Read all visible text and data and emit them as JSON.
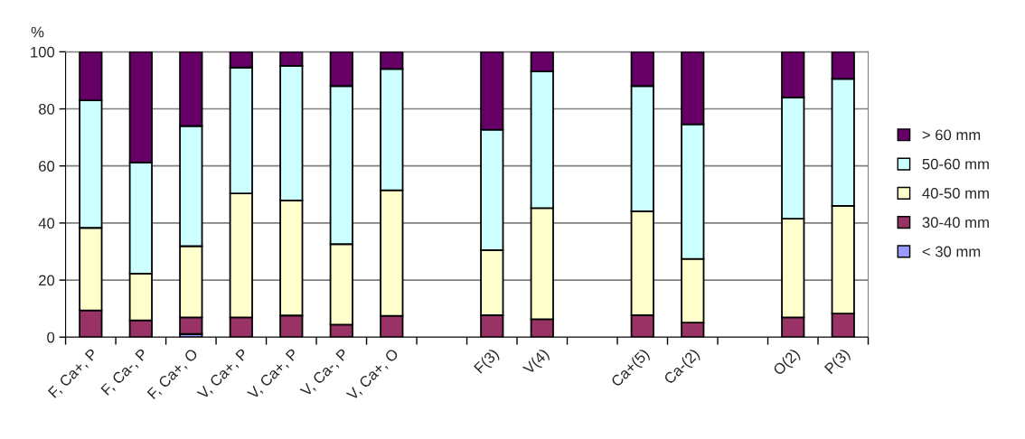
{
  "chart_data": {
    "type": "bar",
    "stacked": true,
    "ylabel": "%",
    "categories": [
      "F, Ca+, P",
      "F, Ca-, P",
      "F, Ca+, O",
      "V, Ca+, P",
      "V, Ca+, P",
      "V, Ca-, P",
      "V, Ca+, O",
      null,
      "F(3)",
      "V(4)",
      null,
      "Ca+(5)",
      "Ca-(2)",
      null,
      "O(2)",
      "P(3)"
    ],
    "series": [
      {
        "name": "< 30 mm",
        "color": "#9999ff",
        "values": [
          null,
          null,
          1.1,
          null,
          null,
          null,
          null,
          null,
          null,
          null,
          null,
          null,
          null,
          null,
          null,
          null
        ]
      },
      {
        "name": "30-40 mm",
        "color": "#993366",
        "values": [
          9.4,
          5.9,
          5.8,
          6.9,
          7.6,
          4.4,
          7.5,
          null,
          7.7,
          6.3,
          null,
          7.7,
          5.1,
          null,
          6.9,
          8.3
        ]
      },
      {
        "name": "40-50 mm",
        "color": "#ffffcc",
        "values": [
          28.9,
          16.4,
          25.0,
          43.5,
          40.3,
          28.2,
          44.0,
          null,
          22.8,
          38.9,
          null,
          36.4,
          22.3,
          null,
          34.6,
          37.7
        ]
      },
      {
        "name": "50-60 mm",
        "color": "#ccffff",
        "values": [
          44.7,
          38.9,
          42.1,
          44.1,
          47.2,
          55.4,
          42.5,
          null,
          42.2,
          47.9,
          null,
          43.9,
          47.2,
          null,
          42.5,
          44.5
        ]
      },
      {
        "name": "> 60 mm",
        "color": "#660066",
        "values": [
          17.0,
          38.8,
          26.0,
          5.5,
          4.9,
          12.0,
          6.0,
          null,
          27.3,
          6.9,
          null,
          12.0,
          25.4,
          null,
          16.0,
          9.5
        ]
      }
    ],
    "ylim": [
      0,
      100
    ],
    "yticks": [
      0,
      20,
      40,
      60,
      80,
      100
    ],
    "grid": "y",
    "legend": "right"
  }
}
